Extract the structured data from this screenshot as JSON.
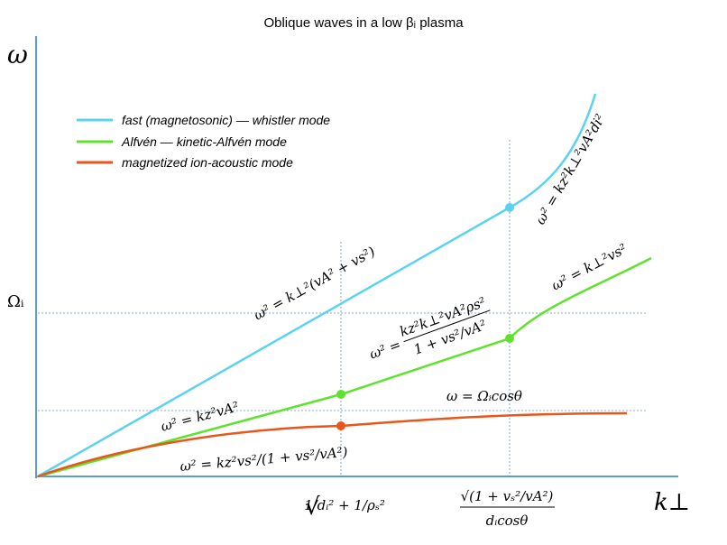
{
  "header": {
    "title": "Oblique waves in a low βᵢ plasma"
  },
  "axes": {
    "y_label": "ω",
    "x_label": "k⊥",
    "omega_i": "Ωᵢ",
    "x_marks": [
      {
        "numerator": "1/dᵢ² + 1/ρₛ²",
        "prefix": "√"
      },
      {
        "numerator": "√(1 + vₛ²/vA²)",
        "denominator": "dᵢcosθ"
      }
    ]
  },
  "legend": [
    {
      "label": "fast (magnetosonic) — whistler mode",
      "color": "#5bd3f0"
    },
    {
      "label": "Alfvén — kinetic-Alfvén mode",
      "color": "#5ee32c"
    },
    {
      "label": "magnetized ion-acoustic mode",
      "color": "#e8561c"
    }
  ],
  "curve_labels": {
    "fast_low": "ω² = k⊥²(vA² + vs²)",
    "fast_high": "ω² = kz²k⊥²vA²di²",
    "alfven_low": "ω² = kz²vA²",
    "alfven_mid": {
      "numerator": "kz²k⊥²vA²ρs²",
      "denominator": "1 + vs²/vA²",
      "prefix": "ω² ="
    },
    "alfven_high": "ω² = k⊥²vs²",
    "ion_acoustic_low": "ω² = kz²vs²/(1 + vs²/vA²)",
    "ion_acoustic_high": "ω =  Ωᵢcosθ"
  }
}
